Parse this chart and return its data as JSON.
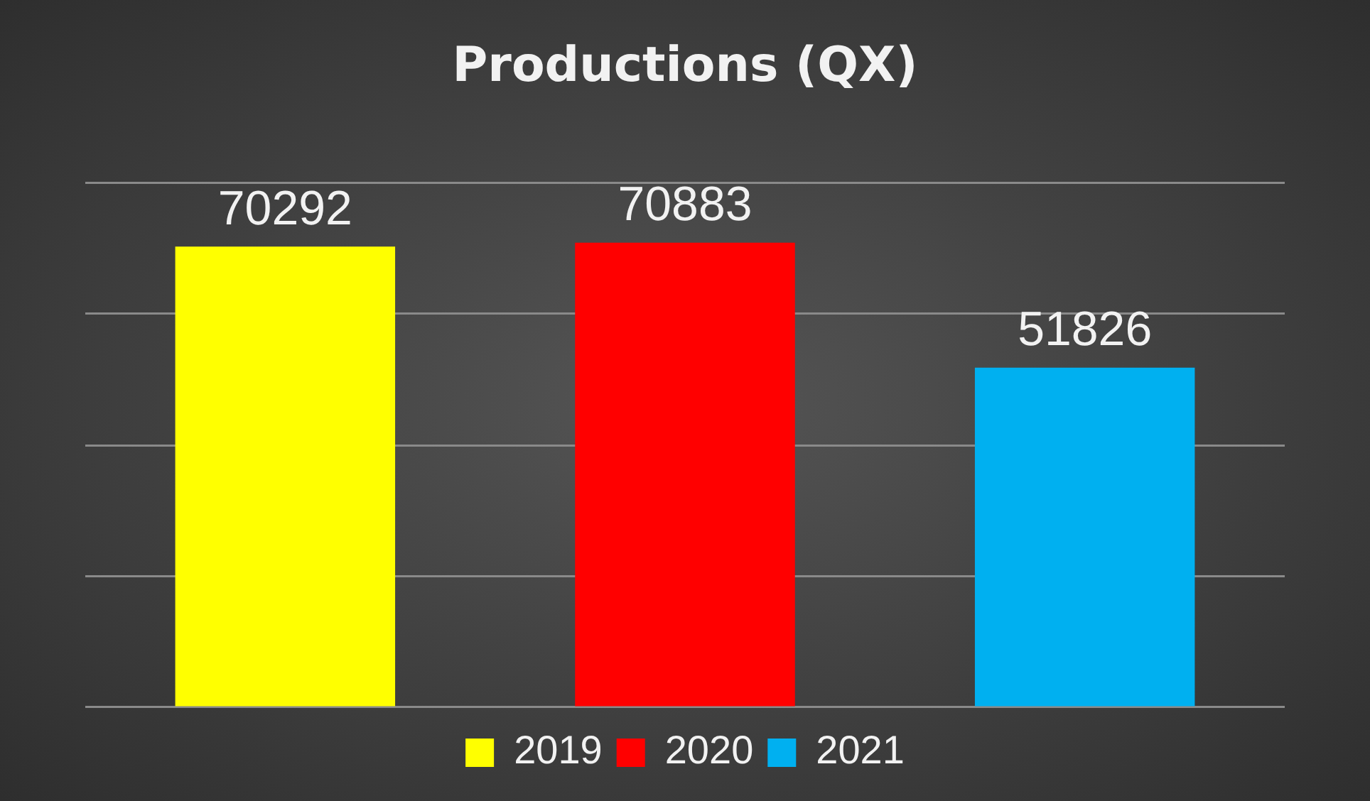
{
  "chart_data": {
    "type": "bar",
    "title": "Productions (QX)",
    "categories": [
      null,
      null,
      null
    ],
    "stacked": true,
    "series": [
      {
        "name": "2019",
        "color": "#ffff00",
        "values": [
          70292,
          null,
          null
        ]
      },
      {
        "name": "2020",
        "color": "#ff0000",
        "values": [
          null,
          70883,
          null
        ]
      },
      {
        "name": "2021",
        "color": "#00b0f0",
        "values": [
          null,
          null,
          51826
        ]
      }
    ],
    "grid": "y",
    "tick_labels": false,
    "legend": "bottom",
    "data_labels": true
  }
}
